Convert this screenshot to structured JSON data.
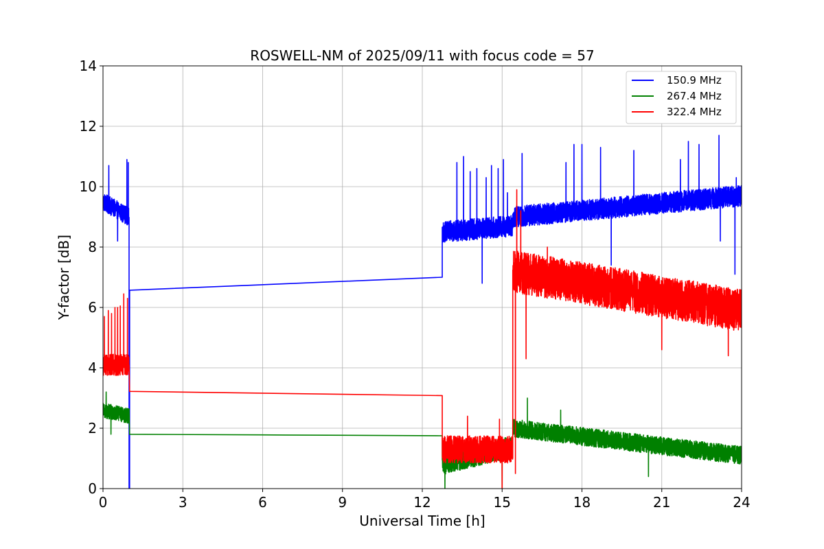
{
  "chart_data": {
    "type": "line",
    "title": "ROSWELL-NM of 2025/09/11 with focus code = 57",
    "xlabel": "Universal Time [h]",
    "ylabel": "Y-factor [dB]",
    "xlim": [
      0,
      24
    ],
    "ylim": [
      0,
      14
    ],
    "xticks": [
      0,
      3,
      6,
      9,
      12,
      15,
      18,
      21,
      24
    ],
    "yticks": [
      0,
      2,
      4,
      6,
      8,
      10,
      12,
      14
    ],
    "grid": true,
    "legend_position": "top-right",
    "series": [
      {
        "name": "150.9 MHz",
        "color": "#0000ff",
        "segments": [
          {
            "x_start": 0.0,
            "x_end": 0.98,
            "mean_start": 9.5,
            "mean_end": 9.0,
            "noise": 0.3,
            "spikes": [
              [
                0.22,
                10.7
              ],
              [
                0.55,
                8.2
              ],
              [
                0.9,
                10.9
              ],
              [
                0.95,
                10.8
              ]
            ]
          },
          {
            "x_start": 0.98,
            "x_end": 1.0,
            "mean_start": 0.0,
            "mean_end": 0.0,
            "noise": 0
          },
          {
            "x_start": 1.0,
            "x_end": 12.75,
            "mean_start": 6.57,
            "mean_end": 7.0,
            "noise": 0
          },
          {
            "x_start": 12.75,
            "x_end": 15.4,
            "mean_start": 8.5,
            "mean_end": 8.7,
            "noise": 0.35,
            "spikes": [
              [
                13.3,
                10.8
              ],
              [
                13.55,
                11.0
              ],
              [
                13.8,
                10.5
              ],
              [
                14.05,
                10.6
              ],
              [
                14.25,
                6.8
              ],
              [
                14.4,
                10.3
              ],
              [
                14.6,
                10.7
              ],
              [
                14.85,
                10.6
              ],
              [
                15.05,
                10.9
              ],
              [
                15.2,
                9.8
              ]
            ]
          },
          {
            "x_start": 15.4,
            "x_end": 24.0,
            "mean_start": 9.0,
            "mean_end": 9.7,
            "noise": 0.35,
            "spikes": [
              [
                15.75,
                11.1
              ],
              [
                17.4,
                10.8
              ],
              [
                17.7,
                11.4
              ],
              [
                18.0,
                11.4
              ],
              [
                18.7,
                11.3
              ],
              [
                19.1,
                7.4
              ],
              [
                19.95,
                11.2
              ],
              [
                21.7,
                10.9
              ],
              [
                22.0,
                11.5
              ],
              [
                22.4,
                11.4
              ],
              [
                23.15,
                11.7
              ],
              [
                23.2,
                8.2
              ],
              [
                23.75,
                7.1
              ],
              [
                23.8,
                10.3
              ]
            ]
          }
        ]
      },
      {
        "name": "267.4 MHz",
        "color": "#008000",
        "segments": [
          {
            "x_start": 0.0,
            "x_end": 0.98,
            "mean_start": 2.6,
            "mean_end": 2.4,
            "noise": 0.25,
            "spikes": [
              [
                0.12,
                3.2
              ],
              [
                0.3,
                1.8
              ]
            ]
          },
          {
            "x_start": 1.0,
            "x_end": 12.75,
            "mean_start": 1.8,
            "mean_end": 1.75,
            "noise": 0
          },
          {
            "x_start": 12.75,
            "x_end": 15.4,
            "mean_start": 0.8,
            "mean_end": 1.4,
            "noise": 0.35,
            "spikes": [
              [
                12.85,
                0.0
              ],
              [
                15.0,
                0.0
              ]
            ]
          },
          {
            "x_start": 15.4,
            "x_end": 24.0,
            "mean_start": 2.0,
            "mean_end": 1.1,
            "noise": 0.3,
            "spikes": [
              [
                15.95,
                3.0
              ],
              [
                17.2,
                2.6
              ],
              [
                18.0,
                1.5
              ],
              [
                20.5,
                0.4
              ]
            ]
          }
        ]
      },
      {
        "name": "322.4 MHz",
        "color": "#ff0000",
        "segments": [
          {
            "x_start": 0.0,
            "x_end": 0.98,
            "mean_start": 4.1,
            "mean_end": 4.1,
            "noise": 0.35,
            "spikes": [
              [
                0.05,
                5.7
              ],
              [
                0.2,
                5.9
              ],
              [
                0.32,
                5.8
              ],
              [
                0.45,
                6.0
              ],
              [
                0.55,
                6.0
              ],
              [
                0.65,
                6.05
              ],
              [
                0.78,
                6.45
              ],
              [
                0.92,
                6.3
              ]
            ]
          },
          {
            "x_start": 1.0,
            "x_end": 12.75,
            "mean_start": 3.22,
            "mean_end": 3.08,
            "noise": 0
          },
          {
            "x_start": 12.75,
            "x_end": 15.4,
            "mean_start": 1.3,
            "mean_end": 1.3,
            "noise": 0.45,
            "spikes": [
              [
                13.7,
                2.4
              ],
              [
                14.9,
                2.3
              ],
              [
                15.0,
                0.0
              ]
            ]
          },
          {
            "x_start": 15.4,
            "x_end": 24.0,
            "mean_start": 7.2,
            "mean_end": 5.9,
            "noise": 0.7,
            "spikes": [
              [
                15.55,
                9.9
              ],
              [
                15.7,
                9.2
              ],
              [
                15.9,
                4.3
              ],
              [
                15.5,
                0.5
              ],
              [
                16.7,
                8.0
              ],
              [
                23.5,
                4.4
              ],
              [
                21.0,
                4.6
              ]
            ]
          }
        ]
      }
    ]
  }
}
